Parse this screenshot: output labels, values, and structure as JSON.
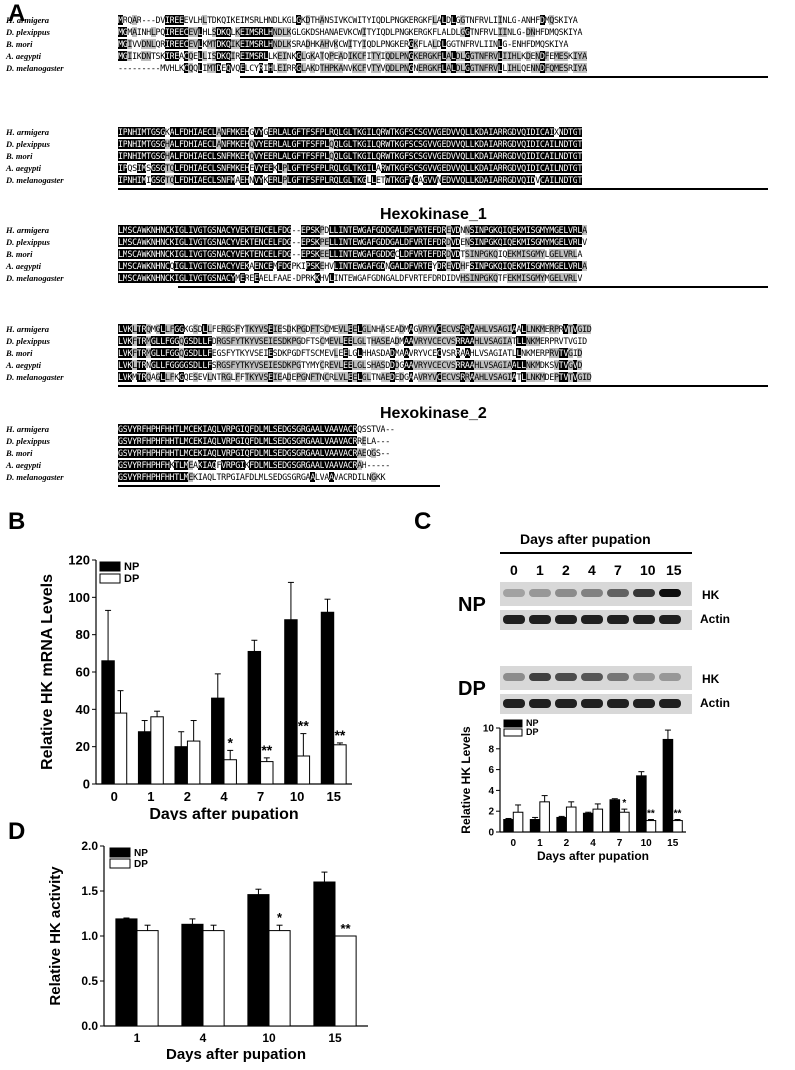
{
  "panels": {
    "A": "A",
    "B": "B",
    "C": "C",
    "D": "D"
  },
  "alignment": {
    "species": [
      "H. armigera",
      "D. plexippus",
      "B. mori",
      "A. aegypti",
      "D. melanogaster"
    ],
    "blocks": [
      [
        "MRQAR---DVIREEEVLHLTDKQIKEIMSRLHNDLKGLGKDTHANSIVKCWITYIQDLPNGKERGKFLALDLGGTNFRVLIINLG-ANHFDMQSKIYA",
        "MGMAINHLPQIREECEVLHLSDKQLKEIMSRLHNDLKGLGKDSHANAEVKCWITYIQDLPNGKERGKFLALDLGGTNFRVLIINLG-DNHFDMQSKIYA",
        "MGIVVDNLQRIREECEVLKMTDKQIKEIMSRLHNDLKSRADHKAHVKCWITYIQDLPNGKERGKFLALDLGGTNFRVLIINLG-ENHFDMQSKIYA",
        "MGIIKDNTSKIREACQELLISDKQIREIMSRLLKEINKGLGKATQPEADIKCFITYIQDLPNGKERGKFLALDLGGTNFRVLIIHLKDENDFEMESKIYA",
        "---------MVHLKCQQLIMTDEQVQELCYRIHLEIRRGLAKDTHPKANVKCFVTYVQDLPNGNERGKFLALDLGGTNFRVLLIHLQENNDFQMESRIYA"
      ],
      [
        "IPNHIMTGSGKALFDHIAECLANFMKEHGVYGERLALGFTFSFPLRQLGLTKGILQRWTKGFSCSGVVGEDVVQLLKDAIARRGDVQIDICAIXNDTGT",
        "IPNHIMTGSGHALFDHIAECLANFMKEHQVYEERLALGFTFSFPLQQLGLTKGILQRWTKGFSCSGVVGEDVVQLLKDAIARRGDVQIDICAILNDTGT",
        "IPNHIMTGSGHALFDHIAECLSNFMKEHQVYEERLALGFTFSFPLQQLGLTKGILQRWTKGFSCSGVVGEDVVQLLKDAIARRGDVQIDICAILNDTGT",
        "IPQSIMSGSGTQLFDHIAECLSNFMKEHEVYEEKLPLGFTFSFPLRQLGLTKGILARWTKGFSCSGVVGEDVVQLLKDAIARRGDVQIDICAILNDTGT",
        "IPNHIMIGSGTQLFDHIAECLSNFMAEHNVYKERLPLGFTFSFPLRQLGLTKGLLETWTKGFNCAGVVNEDVVQLLKDAIARRGDVQIDVCAILNDTGT"
      ],
      [
        "LMSCAWKNHNCKIGLIVGTGSNACYVEKTENCELFDG--EPSKPDLLINTEWGAFGDDGALDFVRTEFDREVDNNSINPGKQIQEKMISGMYMGELVRLA",
        "LMSCAWKNHNCKIGLIVGTGSNACYVEKTENCELFDG--EPSKPELLINTEWGAFGDDGALDFVRTEFDRDVDENSINPGKQIQEKMISGMYMGELVRLV",
        "LMSCAWKNHNCKIGLIVGTGSNACYVEKTENCELFDG--EPSKEELLINTEWGAFGDDGCLDFVRTEFDRDVDTSINPGKQIQEKMISGMYLGELVRLA",
        "LMSCAWKNHNCQIGLIVGTGSNACYVEKAENCEMFDGPKIPSKEHVLINTEWGAFGDNGALDFVRTEYDREVDHFSINPGKQIQEKMISGMYMGELVRLA",
        "LMSCAWKNHNCKIGLIVGTGSNACYMEREEAELFAAE-DPRKKHVLINTEWGAFGDNGALDFVRTEFDRDIDVHSINPGKQTFEKMISGMYMGELVRLV"
      ],
      [
        "LVKLTRQMGLLFGGKGSDLLFERGSFYTKYVSEIESDKPGDFTSCMEVLEELGLNHASEADMAGVRYVCECVSRRAAHLVSAGIAALLNKMERPRVTVGID",
        "LVKFTRMGLLFGGQGSDLLFDRGSFYTKYVSEIESDKPGDFTSCMEVLEELGLTHASEADMAAVRYVCECVSRRAAHLVSAGIATLLNKMERPRVTVGID",
        "LVKFTRMGLLFGGQGSDLLFEGSFYTKYVSEIESDKPGDFTSCMEVLEELGLHHASDADMAAVRYVCECVSRRAAHLVSAGIATLLNKMERPRVTVGID",
        "LVKLTRNGLLFGGGGSDLLFSRGSFYTKYVSEIESDKPGTYMYCREVLEELGLSHASDDDGAAVRYVCECVSRRAAHLVSAGIAALLNKMDKSVTVGVD",
        "LVKMTRQAGLLFKGQESEVLNTRGLFFTKYVSEIEADEPGNFTNCRLVLEELGLTNAEDEDGAAVRYVCECVSRRAAHLVSAGIATLLNKMDEPTVTVGID"
      ],
      [
        "GSVYRFHPHFHHTLMCEKIAQLVRPGIQFDLMLSEDGSGRGAALVAAVACRQSSTVA--",
        "GSVYRFHPHFHHTLMCEKIAQLVRPGIQFDLMLSEDGSGRGAALVAAVACRRELA---",
        "GSVYRFHPHFHHTLMCEKIAQLVRPGIQFDLMLSEDGSGRGAALVAAVACRAEQGS--",
        "GSVYRFHPHFHKTLMEAKIAQFVRPGIKFDLMLSEDGSGRGAALVAAVACRAH-----",
        "GSVYRFHPHFHHTLMEKIAQLTRPGIAFDLMLSEDGSGRGAALVAAVACRDILNGKK"
      ]
    ],
    "domains": [
      "Hexokinase_1",
      "Hexokinase_2"
    ]
  },
  "colors": {
    "NP": "#000000",
    "DP": "#ffffff"
  },
  "chart_data": [
    {
      "type": "bar",
      "panel": "B",
      "categories": [
        "0",
        "1",
        "2",
        "4",
        "7",
        "10",
        "15"
      ],
      "series": [
        {
          "name": "NP",
          "values": [
            66,
            28,
            20,
            46,
            71,
            88,
            92
          ],
          "errors": [
            27,
            6,
            8,
            13,
            6,
            20,
            7
          ]
        },
        {
          "name": "DP",
          "values": [
            38,
            36,
            23,
            13,
            12,
            15,
            21
          ],
          "errors": [
            12,
            3,
            11,
            5,
            2,
            12,
            1
          ]
        }
      ],
      "significance": [
        "",
        "",
        "",
        "*",
        "**",
        "**",
        "**"
      ],
      "xlabel": "Days after pupation",
      "ylabel": "Relative HK mRNA Levels",
      "ylim": [
        0,
        120
      ],
      "yticks": [
        0,
        20,
        40,
        60,
        80,
        100,
        120
      ],
      "legend": "top-left"
    },
    {
      "type": "bar",
      "panel": "C",
      "categories": [
        "0",
        "1",
        "2",
        "4",
        "7",
        "10",
        "15"
      ],
      "series": [
        {
          "name": "NP",
          "values": [
            1.2,
            1.2,
            1.4,
            1.8,
            3.1,
            5.4,
            8.9
          ],
          "errors": [
            0.1,
            0.2,
            0.1,
            0.1,
            0.1,
            0.4,
            0.9
          ]
        },
        {
          "name": "DP",
          "values": [
            1.9,
            2.9,
            2.4,
            2.2,
            1.9,
            1.1,
            1.1
          ],
          "errors": [
            0.7,
            0.6,
            0.5,
            0.5,
            0.3,
            0.1,
            0.1
          ]
        }
      ],
      "significance": [
        "",
        "",
        "",
        "",
        "*",
        "**",
        "**"
      ],
      "xlabel": "Days after pupation",
      "ylabel": "Relative HK Levels",
      "ylim": [
        0,
        10
      ],
      "yticks": [
        0,
        2,
        4,
        6,
        8,
        10
      ],
      "legend": "top-left"
    },
    {
      "type": "bar",
      "panel": "D",
      "categories": [
        "1",
        "4",
        "10",
        "15"
      ],
      "series": [
        {
          "name": "NP",
          "values": [
            1.19,
            1.13,
            1.46,
            1.6
          ],
          "errors": [
            0.01,
            0.06,
            0.06,
            0.11
          ]
        },
        {
          "name": "DP",
          "values": [
            1.06,
            1.06,
            1.06,
            1.0
          ],
          "errors": [
            0.06,
            0.06,
            0.06,
            0.0
          ]
        }
      ],
      "significance": [
        "",
        "",
        "*",
        "**"
      ],
      "xlabel": "Days after pupation",
      "ylabel": "Relative HK activity",
      "ylim": [
        0,
        2.0
      ],
      "yticks": [
        "0.0",
        "0.5",
        "1.0",
        "1.5",
        "2.0"
      ],
      "legend": "top-left"
    }
  ],
  "blot": {
    "title": "Days after pupation",
    "days": [
      "0",
      "1",
      "2",
      "4",
      "7",
      "10",
      "15"
    ],
    "groups": [
      "NP",
      "DP"
    ],
    "labels": [
      "HK",
      "Actin"
    ]
  }
}
